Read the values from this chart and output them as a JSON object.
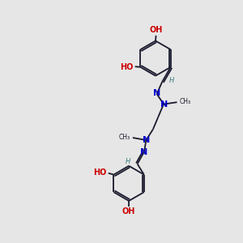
{
  "bg_color": "#e6e6e6",
  "bond_color": "#1a1a2e",
  "N_color": "#0000cc",
  "O_color": "#cc0000",
  "H_color": "#3a7a7a",
  "C_color": "#1a1a2e",
  "figsize": [
    3.0,
    3.0
  ],
  "dpi": 100,
  "ring_r": 0.72,
  "lw": 1.3,
  "fs_main": 7.0,
  "fs_small": 6.0,
  "xlim": [
    0,
    10
  ],
  "ylim": [
    0,
    10
  ]
}
